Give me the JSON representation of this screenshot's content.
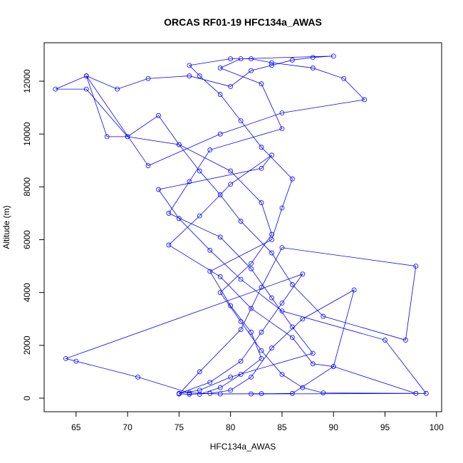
{
  "chart_data": {
    "type": "line",
    "title": "ORCAS RF01-19 HFC134a_AWAS",
    "xlabel": "HFC134a_AWAS",
    "ylabel": "Altitude (m)",
    "color": "#0000ff",
    "markers": true,
    "xlim": [
      61.9,
      100.5
    ],
    "ylim": [
      -512,
      13456
    ],
    "xticks": [
      65,
      70,
      75,
      80,
      85,
      90,
      95,
      100
    ],
    "yticks": [
      0,
      2000,
      4000,
      6000,
      8000,
      10000,
      12000
    ],
    "x": [
      77,
      79,
      81,
      83,
      82,
      80,
      78,
      84,
      85,
      86,
      83,
      81,
      79,
      77,
      76,
      80,
      82,
      84,
      88,
      91,
      93,
      85,
      79,
      72,
      66,
      63,
      66,
      70,
      75,
      80,
      83,
      84,
      82,
      79,
      81,
      83,
      85,
      87,
      89,
      99,
      95,
      85,
      81,
      78,
      75,
      73,
      83,
      84,
      80,
      77,
      74,
      79,
      82,
      86,
      88,
      90,
      92,
      87,
      84,
      82,
      80,
      78,
      76,
      75,
      77,
      81,
      83,
      85,
      98,
      97,
      89,
      86,
      84,
      81,
      79,
      77,
      75,
      73,
      70,
      68,
      66,
      69,
      72,
      76,
      80,
      82,
      84,
      86,
      88,
      90,
      81,
      79,
      83,
      85,
      78,
      76,
      74,
      79,
      82,
      84,
      86,
      88,
      80,
      77,
      75,
      78,
      81,
      83,
      85,
      87,
      64,
      65,
      71,
      76,
      79,
      83,
      86,
      90,
      98,
      82
    ],
    "y": [
      150,
      400,
      900,
      1500,
      2500,
      3500,
      4800,
      6000,
      7200,
      8300,
      9500,
      10500,
      11500,
      12200,
      12600,
      12850,
      12850,
      12700,
      12500,
      12100,
      11300,
      10800,
      10000,
      8800,
      12200,
      11700,
      11700,
      9900,
      9600,
      8600,
      7400,
      6200,
      5100,
      4000,
      2900,
      1800,
      900,
      400,
      200,
      180,
      2200,
      3300,
      4500,
      5600,
      6800,
      7900,
      8700,
      9200,
      8100,
      6900,
      5800,
      4600,
      3400,
      2300,
      1300,
      1200,
      4100,
      3000,
      1900,
      800,
      300,
      180,
      150,
      160,
      1000,
      2600,
      4200,
      5700,
      5000,
      2200,
      3100,
      4300,
      5500,
      6700,
      7700,
      8600,
      9600,
      10700,
      9900,
      9900,
      12200,
      11700,
      12100,
      12200,
      11800,
      12400,
      12600,
      12800,
      12900,
      12950,
      12850,
      12500,
      11900,
      10200,
      9400,
      8200,
      7000,
      6100,
      4900,
      3800,
      2700,
      1700,
      800,
      300,
      180,
      600,
      1400,
      2500,
      3600,
      4700,
      1500,
      1400,
      800,
      200,
      160,
      170,
      180,
      1200,
      180,
      160
    ]
  }
}
